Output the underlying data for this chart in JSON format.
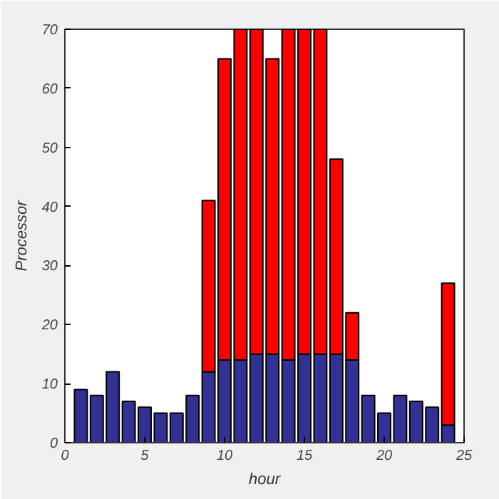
{
  "chart_data": {
    "type": "bar",
    "stacked": true,
    "xlabel": "hour",
    "ylabel": "Processor",
    "x": [
      1,
      2,
      3,
      4,
      5,
      6,
      7,
      8,
      9,
      10,
      11,
      12,
      13,
      14,
      15,
      16,
      17,
      18,
      19,
      20,
      21,
      22,
      23,
      24
    ],
    "series": [
      {
        "color": "#323296",
        "values": [
          9,
          8,
          12,
          7,
          6,
          5,
          5,
          8,
          12,
          14,
          14,
          15,
          15,
          14,
          15,
          15,
          15,
          14,
          8,
          5,
          8,
          7,
          6,
          3
        ]
      },
      {
        "color": "#ff0000",
        "values": [
          null,
          null,
          null,
          null,
          null,
          null,
          null,
          null,
          29,
          51,
          56,
          55,
          50,
          56,
          55,
          55,
          33,
          8,
          null,
          null,
          null,
          null,
          null,
          24
        ]
      }
    ],
    "xlim": [
      0,
      25
    ],
    "xticks": [
      0,
      5,
      10,
      15,
      20,
      25
    ],
    "ylim": [
      0,
      70
    ],
    "yticks": [
      0,
      10,
      20,
      30,
      40,
      50,
      60,
      70
    ],
    "grid": false
  }
}
